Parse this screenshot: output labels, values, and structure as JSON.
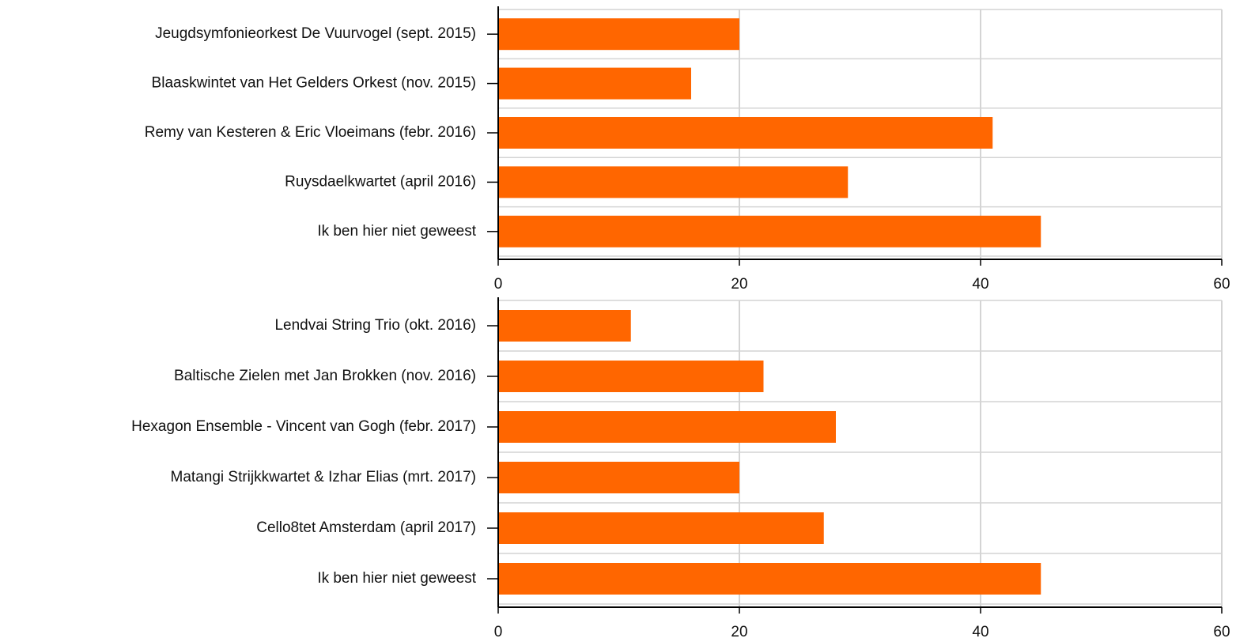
{
  "chart_data": [
    {
      "type": "bar",
      "orientation": "horizontal",
      "categories": [
        "Jeugdsymfonieorkest De Vuurvogel (sept. 2015)",
        "Blaaskwintet van Het Gelders Orkest (nov. 2015)",
        "Remy van Kesteren & Eric Vloeimans (febr. 2016)",
        "Ruysdaelkwartet (april 2016)",
        "Ik ben hier niet geweest"
      ],
      "values": [
        20,
        16,
        41,
        29,
        45
      ],
      "color": "#ff6600",
      "xlim": [
        0,
        60
      ],
      "xticks": [
        0,
        20,
        40,
        60
      ],
      "grid": true
    },
    {
      "type": "bar",
      "orientation": "horizontal",
      "categories": [
        "Lendvai String Trio (okt. 2016)",
        "Baltische Zielen met Jan Brokken (nov. 2016)",
        "Hexagon Ensemble - Vincent van Gogh (febr. 2017)",
        "Matangi Strijkkwartet & Izhar Elias (mrt. 2017)",
        "Cello8tet Amsterdam (april 2017)",
        "Ik ben hier niet geweest"
      ],
      "values": [
        11,
        22,
        28,
        20,
        27,
        45
      ],
      "color": "#ff6600",
      "xlim": [
        0,
        60
      ],
      "xticks": [
        0,
        20,
        40,
        60
      ],
      "grid": true
    }
  ]
}
